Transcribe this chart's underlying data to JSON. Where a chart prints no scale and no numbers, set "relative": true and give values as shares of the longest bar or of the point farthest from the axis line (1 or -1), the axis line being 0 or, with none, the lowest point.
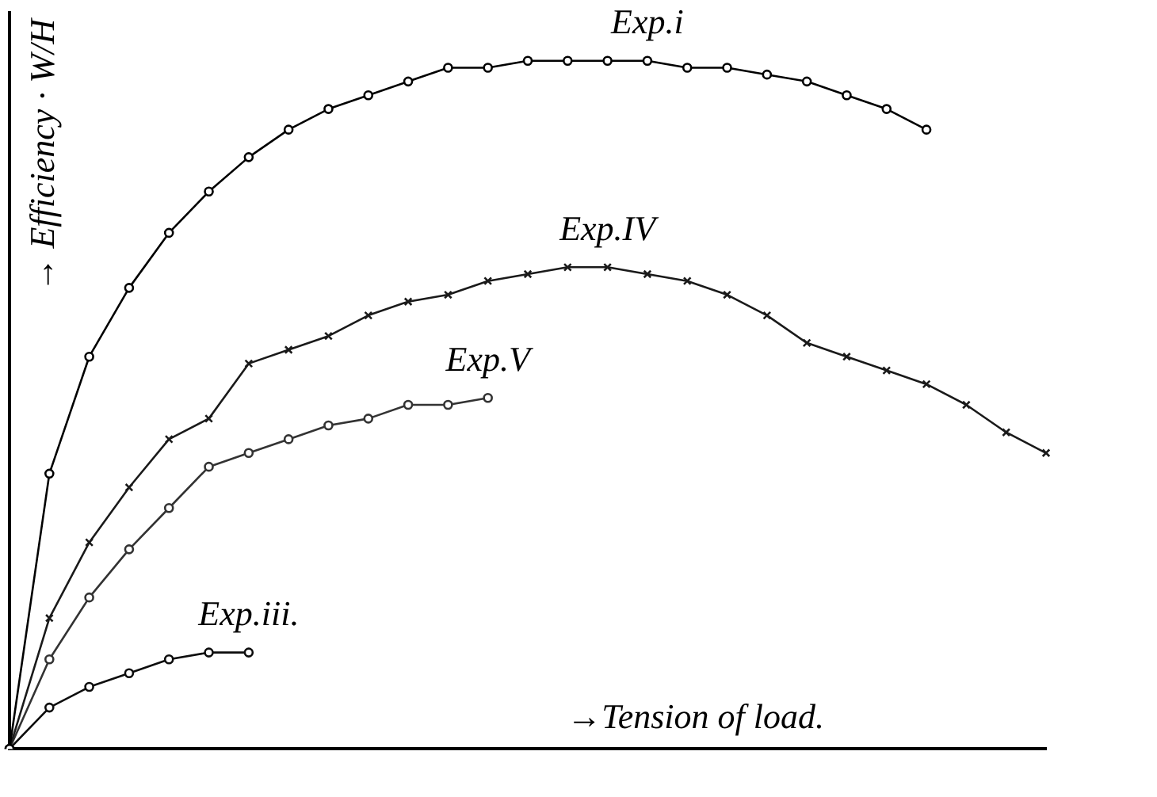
{
  "chart_data": {
    "type": "line",
    "relative": true,
    "xlabel": "→Tension of load.",
    "ylabel": "→ Efficiency · W/H",
    "grid": false,
    "legend": false,
    "categories": [
      null,
      null,
      null,
      null,
      null,
      null,
      null,
      null,
      null,
      null,
      null,
      null,
      null,
      null,
      null,
      null,
      null,
      null,
      null,
      null,
      null,
      null,
      null,
      null,
      null,
      null,
      null
    ],
    "series": [
      {
        "name": "Exp.i",
        "color": "#000000",
        "marker": "circle",
        "values": [
          0,
          0.4,
          0.57,
          0.67,
          0.75,
          0.81,
          0.86,
          0.9,
          0.93,
          0.95,
          0.97,
          0.99,
          0.99,
          1,
          1,
          1,
          1,
          0.99,
          0.99,
          0.98,
          0.97,
          0.95,
          0.93,
          0.9,
          null,
          null,
          null
        ]
      },
      {
        "name": "Exp.IV",
        "color": "#1a1a1a",
        "marker": "cross",
        "values": [
          0,
          0.19,
          0.3,
          0.38,
          0.45,
          0.48,
          0.56,
          0.58,
          0.6,
          0.63,
          0.65,
          0.66,
          0.68,
          0.69,
          0.7,
          0.7,
          0.69,
          0.68,
          0.66,
          0.63,
          0.59,
          0.57,
          0.55,
          0.53,
          0.5,
          0.46,
          0.43
        ]
      },
      {
        "name": "Exp.V",
        "color": "#333333",
        "marker": "circle",
        "values": [
          0,
          0.13,
          0.22,
          0.29,
          0.35,
          0.41,
          0.43,
          0.45,
          0.47,
          0.48,
          0.5,
          0.5,
          0.51,
          null,
          null,
          null,
          null,
          null,
          null,
          null,
          null,
          null,
          null,
          null,
          null,
          null,
          null
        ]
      },
      {
        "name": "Exp.iii.",
        "color": "#0d0d0d",
        "marker": "circle",
        "values": [
          0,
          0.06,
          0.09,
          0.11,
          0.13,
          0.14,
          0.14,
          null,
          null,
          null,
          null,
          null,
          null,
          null,
          null,
          null,
          null,
          null,
          null,
          null,
          null,
          null,
          null,
          null,
          null,
          null,
          null
        ]
      }
    ]
  }
}
